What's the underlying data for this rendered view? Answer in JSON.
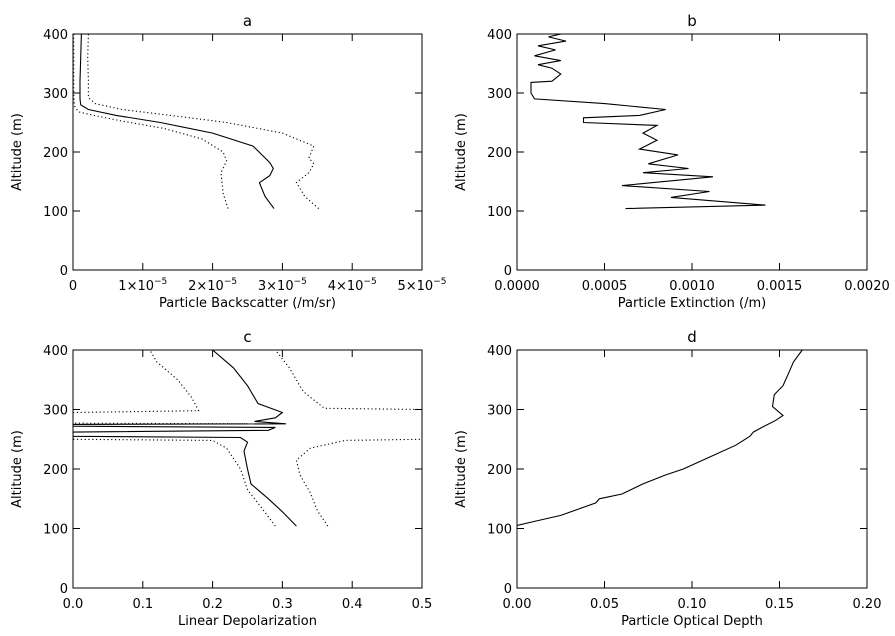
{
  "chart_data": [
    {
      "type": "line",
      "title": "a",
      "xlabel": "Particle Backscatter (/m/sr)",
      "ylabel": "Altitude (m)",
      "xlim": [
        0,
        5e-05
      ],
      "ylim": [
        0,
        400
      ],
      "x_ticks": [
        0,
        1e-05,
        2e-05,
        3e-05,
        4e-05,
        5e-05
      ],
      "x_tick_labels": [
        {
          "base": "0",
          "exp": ""
        },
        {
          "base": "1×10",
          "exp": "−5"
        },
        {
          "base": "2×10",
          "exp": "−5"
        },
        {
          "base": "3×10",
          "exp": "−5"
        },
        {
          "base": "4×10",
          "exp": "−5"
        },
        {
          "base": "5×10",
          "exp": "−5"
        }
      ],
      "y_ticks": [
        0,
        100,
        200,
        300,
        400
      ],
      "y_tick_labels": [
        "0",
        "100",
        "200",
        "300",
        "400"
      ],
      "grid": false,
      "series": [
        {
          "style": "solid",
          "points": [
            [
              2.88e-05,
              104
            ],
            [
              2.75e-05,
              125
            ],
            [
              2.67e-05,
              148
            ],
            [
              2.82e-05,
              160
            ],
            [
              2.87e-05,
              172
            ],
            [
              2.82e-05,
              182
            ],
            [
              2.58e-05,
              210
            ],
            [
              2e-05,
              232
            ],
            [
              1.25e-05,
              250
            ],
            [
              6.2e-06,
              262
            ],
            [
              2.2e-06,
              272
            ],
            [
              1.1e-06,
              280
            ],
            [
              1e-06,
              290
            ],
            [
              1e-06,
              320
            ],
            [
              1.1e-06,
              360
            ],
            [
              1.2e-06,
              400
            ]
          ]
        },
        {
          "style": "dotted",
          "points": [
            [
              3.52e-05,
              104
            ],
            [
              3.32e-05,
              125
            ],
            [
              3.2e-05,
              148
            ],
            [
              3.38e-05,
              165
            ],
            [
              3.45e-05,
              180
            ],
            [
              3.38e-05,
              190
            ],
            [
              3.45e-05,
              210
            ],
            [
              3e-05,
              232
            ],
            [
              2.2e-05,
              250
            ],
            [
              1.4e-05,
              262
            ],
            [
              7e-06,
              272
            ],
            [
              3.2e-06,
              282
            ],
            [
              2.2e-06,
              292
            ],
            [
              2.2e-06,
              320
            ],
            [
              2.1e-06,
              360
            ],
            [
              2.2e-06,
              400
            ]
          ]
        },
        {
          "style": "dotted",
          "points": [
            [
              2.22e-05,
              104
            ],
            [
              2.15e-05,
              130
            ],
            [
              2.12e-05,
              165
            ],
            [
              2.2e-05,
              185
            ],
            [
              2.15e-05,
              200
            ],
            [
              1.85e-05,
              222
            ],
            [
              1.3e-05,
              240
            ],
            [
              7.2e-06,
              252
            ],
            [
              3e-06,
              262
            ],
            [
              8e-07,
              268
            ],
            [
              2e-07,
              278
            ],
            [
              1e-07,
              300
            ],
            [
              1e-07,
              350
            ],
            [
              1e-07,
              400
            ]
          ]
        }
      ]
    },
    {
      "type": "line",
      "title": "b",
      "xlabel": "Particle Extinction (/m)",
      "ylabel": "Altitude (m)",
      "xlim": [
        0,
        0.002
      ],
      "ylim": [
        0,
        400
      ],
      "x_ticks": [
        0,
        0.0005,
        0.001,
        0.0015,
        0.002
      ],
      "x_tick_labels": [
        {
          "base": "0.0000",
          "exp": ""
        },
        {
          "base": "0.0005",
          "exp": ""
        },
        {
          "base": "0.0010",
          "exp": ""
        },
        {
          "base": "0.0015",
          "exp": ""
        },
        {
          "base": "0.0020",
          "exp": ""
        }
      ],
      "y_ticks": [
        0,
        100,
        200,
        300,
        400
      ],
      "y_tick_labels": [
        "0",
        "100",
        "200",
        "300",
        "400"
      ],
      "grid": false,
      "series": [
        {
          "style": "solid",
          "points": [
            [
              0.00062,
              104
            ],
            [
              0.00142,
              110
            ],
            [
              0.00088,
              123
            ],
            [
              0.0011,
              133
            ],
            [
              0.0006,
              143
            ],
            [
              0.00112,
              158
            ],
            [
              0.00072,
              165
            ],
            [
              0.00098,
              172
            ],
            [
              0.00075,
              180
            ],
            [
              0.00092,
              195
            ],
            [
              0.0007,
              205
            ],
            [
              0.0008,
              220
            ],
            [
              0.00072,
              232
            ],
            [
              0.0008,
              245
            ],
            [
              0.00038,
              250
            ],
            [
              0.00038,
              258
            ],
            [
              0.0007,
              262
            ],
            [
              0.00085,
              272
            ],
            [
              0.0005,
              282
            ],
            [
              0.0001,
              290
            ],
            [
              8e-05,
              300
            ],
            [
              8e-05,
              318
            ],
            [
              0.0002,
              320
            ],
            [
              0.00025,
              332
            ],
            [
              0.0002,
              342
            ],
            [
              0.00012,
              348
            ],
            [
              0.00025,
              355
            ],
            [
              0.0001,
              363
            ],
            [
              0.00022,
              373
            ],
            [
              0.00012,
              380
            ],
            [
              0.00028,
              388
            ],
            [
              0.00018,
              395
            ],
            [
              0.00025,
              400
            ]
          ]
        }
      ]
    },
    {
      "type": "line",
      "title": "c",
      "xlabel": "Linear Depolarization",
      "ylabel": "Altitude (m)",
      "xlim": [
        0,
        0.5
      ],
      "ylim": [
        0,
        400
      ],
      "x_ticks": [
        0,
        0.1,
        0.2,
        0.3,
        0.4,
        0.5
      ],
      "x_tick_labels": [
        {
          "base": "0.0",
          "exp": ""
        },
        {
          "base": "0.1",
          "exp": ""
        },
        {
          "base": "0.2",
          "exp": ""
        },
        {
          "base": "0.3",
          "exp": ""
        },
        {
          "base": "0.4",
          "exp": ""
        },
        {
          "base": "0.5",
          "exp": ""
        }
      ],
      "y_ticks": [
        0,
        100,
        200,
        300,
        400
      ],
      "y_tick_labels": [
        "0",
        "100",
        "200",
        "300",
        "400"
      ],
      "grid": false,
      "series": [
        {
          "style": "solid",
          "points": [
            [
              0.32,
              104
            ],
            [
              0.3,
              128
            ],
            [
              0.28,
              150
            ],
            [
              0.255,
              175
            ],
            [
              0.25,
              200
            ],
            [
              0.245,
              230
            ],
            [
              0.25,
              245
            ],
            [
              0.24,
              253
            ],
            [
              0.0,
              255
            ],
            [
              0.0,
              262
            ],
            [
              0.28,
              265
            ],
            [
              0.29,
              270
            ],
            [
              0.0,
              272
            ],
            [
              0.0,
              275
            ],
            [
              0.305,
              276
            ],
            [
              0.26,
              280
            ],
            [
              0.29,
              286
            ],
            [
              0.3,
              295
            ],
            [
              0.265,
              310
            ],
            [
              0.25,
              340
            ],
            [
              0.23,
              370
            ],
            [
              0.2,
              400
            ]
          ]
        },
        {
          "style": "dotted",
          "points": [
            [
              0.365,
              104
            ],
            [
              0.35,
              130
            ],
            [
              0.34,
              160
            ],
            [
              0.325,
              190
            ],
            [
              0.32,
              215
            ],
            [
              0.34,
              235
            ],
            [
              0.39,
              248
            ],
            [
              0.5,
              250
            ]
          ]
        },
        {
          "style": "dotted",
          "points": [
            [
              0.0,
              252
            ],
            [
              0.0,
              255
            ]
          ]
        },
        {
          "style": "dotted",
          "points": [
            [
              0.29,
              104
            ],
            [
              0.27,
              135
            ],
            [
              0.25,
              165
            ],
            [
              0.24,
              200
            ],
            [
              0.22,
              235
            ],
            [
              0.2,
              248
            ],
            [
              0.0,
              250
            ]
          ]
        },
        {
          "style": "dotted",
          "points": [
            [
              0.0,
              275
            ],
            [
              0.25,
              276
            ],
            [
              0.0,
              277
            ]
          ]
        },
        {
          "style": "dotted",
          "points": [
            [
              0.0,
              295
            ],
            [
              0.18,
              298
            ],
            [
              0.17,
              320
            ],
            [
              0.15,
              350
            ],
            [
              0.12,
              380
            ],
            [
              0.11,
              400
            ]
          ]
        },
        {
          "style": "dotted",
          "points": [
            [
              0.5,
              300
            ],
            [
              0.36,
              302
            ],
            [
              0.33,
              330
            ],
            [
              0.31,
              370
            ],
            [
              0.29,
              400
            ]
          ]
        }
      ]
    },
    {
      "type": "line",
      "title": "d",
      "xlabel": "Particle Optical Depth",
      "ylabel": "Altitude (m)",
      "xlim": [
        0,
        0.2
      ],
      "ylim": [
        0,
        400
      ],
      "x_ticks": [
        0,
        0.05,
        0.1,
        0.15,
        0.2
      ],
      "x_tick_labels": [
        {
          "base": "0.00",
          "exp": ""
        },
        {
          "base": "0.05",
          "exp": ""
        },
        {
          "base": "0.10",
          "exp": ""
        },
        {
          "base": "0.15",
          "exp": ""
        },
        {
          "base": "0.20",
          "exp": ""
        }
      ],
      "y_ticks": [
        0,
        100,
        200,
        300,
        400
      ],
      "y_tick_labels": [
        "0",
        "100",
        "200",
        "300",
        "400"
      ],
      "grid": false,
      "series": [
        {
          "style": "solid",
          "points": [
            [
              0.0,
              105
            ],
            [
              0.01,
              112
            ],
            [
              0.025,
              122
            ],
            [
              0.045,
              143
            ],
            [
              0.047,
              150
            ],
            [
              0.06,
              158
            ],
            [
              0.072,
              175
            ],
            [
              0.085,
              190
            ],
            [
              0.095,
              200
            ],
            [
              0.11,
              220
            ],
            [
              0.125,
              240
            ],
            [
              0.133,
              255
            ],
            [
              0.135,
              262
            ],
            [
              0.14,
              270
            ],
            [
              0.148,
              282
            ],
            [
              0.152,
              290
            ],
            [
              0.146,
              305
            ],
            [
              0.147,
              325
            ],
            [
              0.152,
              340
            ],
            [
              0.155,
              360
            ],
            [
              0.158,
              380
            ],
            [
              0.163,
              400
            ]
          ]
        }
      ]
    }
  ]
}
